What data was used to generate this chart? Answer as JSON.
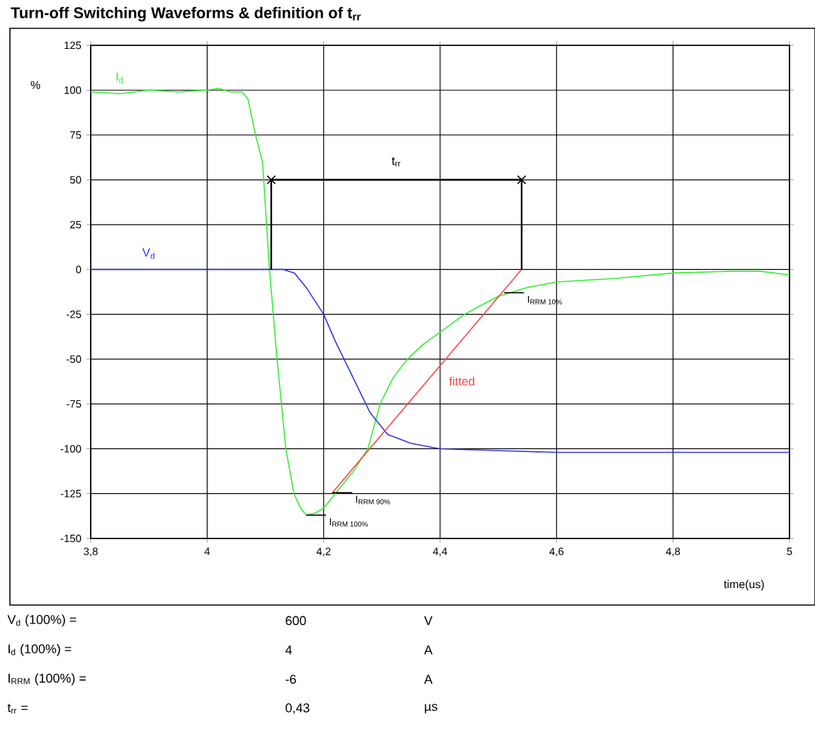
{
  "chart_data": {
    "type": "line",
    "title": "Turn-off  Switching Waveforms & definition of t$_{rr}$",
    "ylabel": "%",
    "xlabel": "time(us)",
    "xlim": [
      3.8,
      5
    ],
    "ylim": [
      -150,
      125
    ],
    "xticks": [
      {
        "value": 3.8,
        "label": "3,8"
      },
      4,
      {
        "value": 4.2,
        "label": "4,2"
      },
      {
        "value": 4.4,
        "label": "4,4"
      },
      {
        "value": 4.6,
        "label": "4,6"
      },
      {
        "value": 4.8,
        "label": "4,8"
      },
      5
    ],
    "yticks": [
      -150,
      -125,
      -100,
      -75,
      -50,
      -25,
      0,
      25,
      50,
      75,
      100,
      125
    ],
    "grid": true,
    "series": [
      {
        "name": "I$_{d}$",
        "color": "#33ee33",
        "x": [
          3.8,
          3.85,
          3.9,
          3.95,
          4.0,
          4.02,
          4.04,
          4.06,
          4.07,
          4.083,
          4.095,
          4.107,
          4.12,
          4.135,
          4.149,
          4.16,
          4.17,
          4.185,
          4.2,
          4.22,
          4.25,
          4.276,
          4.297,
          4.32,
          4.344,
          4.37,
          4.4,
          4.442,
          4.47,
          4.5,
          4.55,
          4.6,
          4.7,
          4.8,
          4.9,
          4.95,
          5.0
        ],
        "values": [
          99,
          98,
          100,
          99,
          100,
          101,
          99,
          99,
          95,
          75,
          60,
          0,
          -50,
          -100,
          -125,
          -133,
          -137,
          -136,
          -133,
          -125,
          -113,
          -100,
          -75,
          -60,
          -50,
          -42,
          -35,
          -25,
          -20,
          -15,
          -10,
          -7,
          -5,
          -2,
          -1,
          -1,
          -3
        ]
      },
      {
        "name": "V$_{d}$",
        "color": "#3333dd",
        "x": [
          3.8,
          3.9,
          4.0,
          4.1,
          4.13,
          4.15,
          4.17,
          4.2,
          4.22,
          4.25,
          4.28,
          4.31,
          4.35,
          4.4,
          4.5,
          4.6,
          4.8,
          5.0
        ],
        "values": [
          0,
          0,
          0,
          0,
          0,
          -2,
          -10,
          -25,
          -40,
          -60,
          -80,
          -92,
          -97,
          -100,
          -101,
          -102,
          -102,
          -102
        ]
      },
      {
        "name": "fitted",
        "color": "#ff4444",
        "x": [
          4.215,
          4.54
        ],
        "values": [
          -124.5,
          0
        ]
      },
      {
        "name": "t$_{rr}$",
        "color": "#000000",
        "marker": "cross",
        "x": [
          4.11,
          4.54
        ],
        "values": [
          50,
          50
        ]
      },
      {
        "color": "#000000",
        "x": [
          4.11,
          4.11
        ],
        "values": [
          0,
          50
        ]
      },
      {
        "color": "#000000",
        "x": [
          4.54,
          4.54
        ],
        "values": [
          0,
          50
        ]
      }
    ],
    "annotations": [
      {
        "text": "I$_{RRM 10%}$",
        "x": 4.51,
        "y": -13
      },
      {
        "text": "I$_{RRM 90%}$",
        "x": 4.215,
        "y": -124.5
      },
      {
        "text": "I$_{RRM 100%}$",
        "x": 4.17,
        "y": -137
      },
      "V$_{d}$ (100%) =",
      "600",
      "V",
      "I$_{d}$ (100%) =",
      "4",
      "A",
      "I$_{RRM}$ (100%) =",
      "-6",
      "A",
      "t$_{rr}$ =",
      "0,43",
      "µs"
    ]
  }
}
